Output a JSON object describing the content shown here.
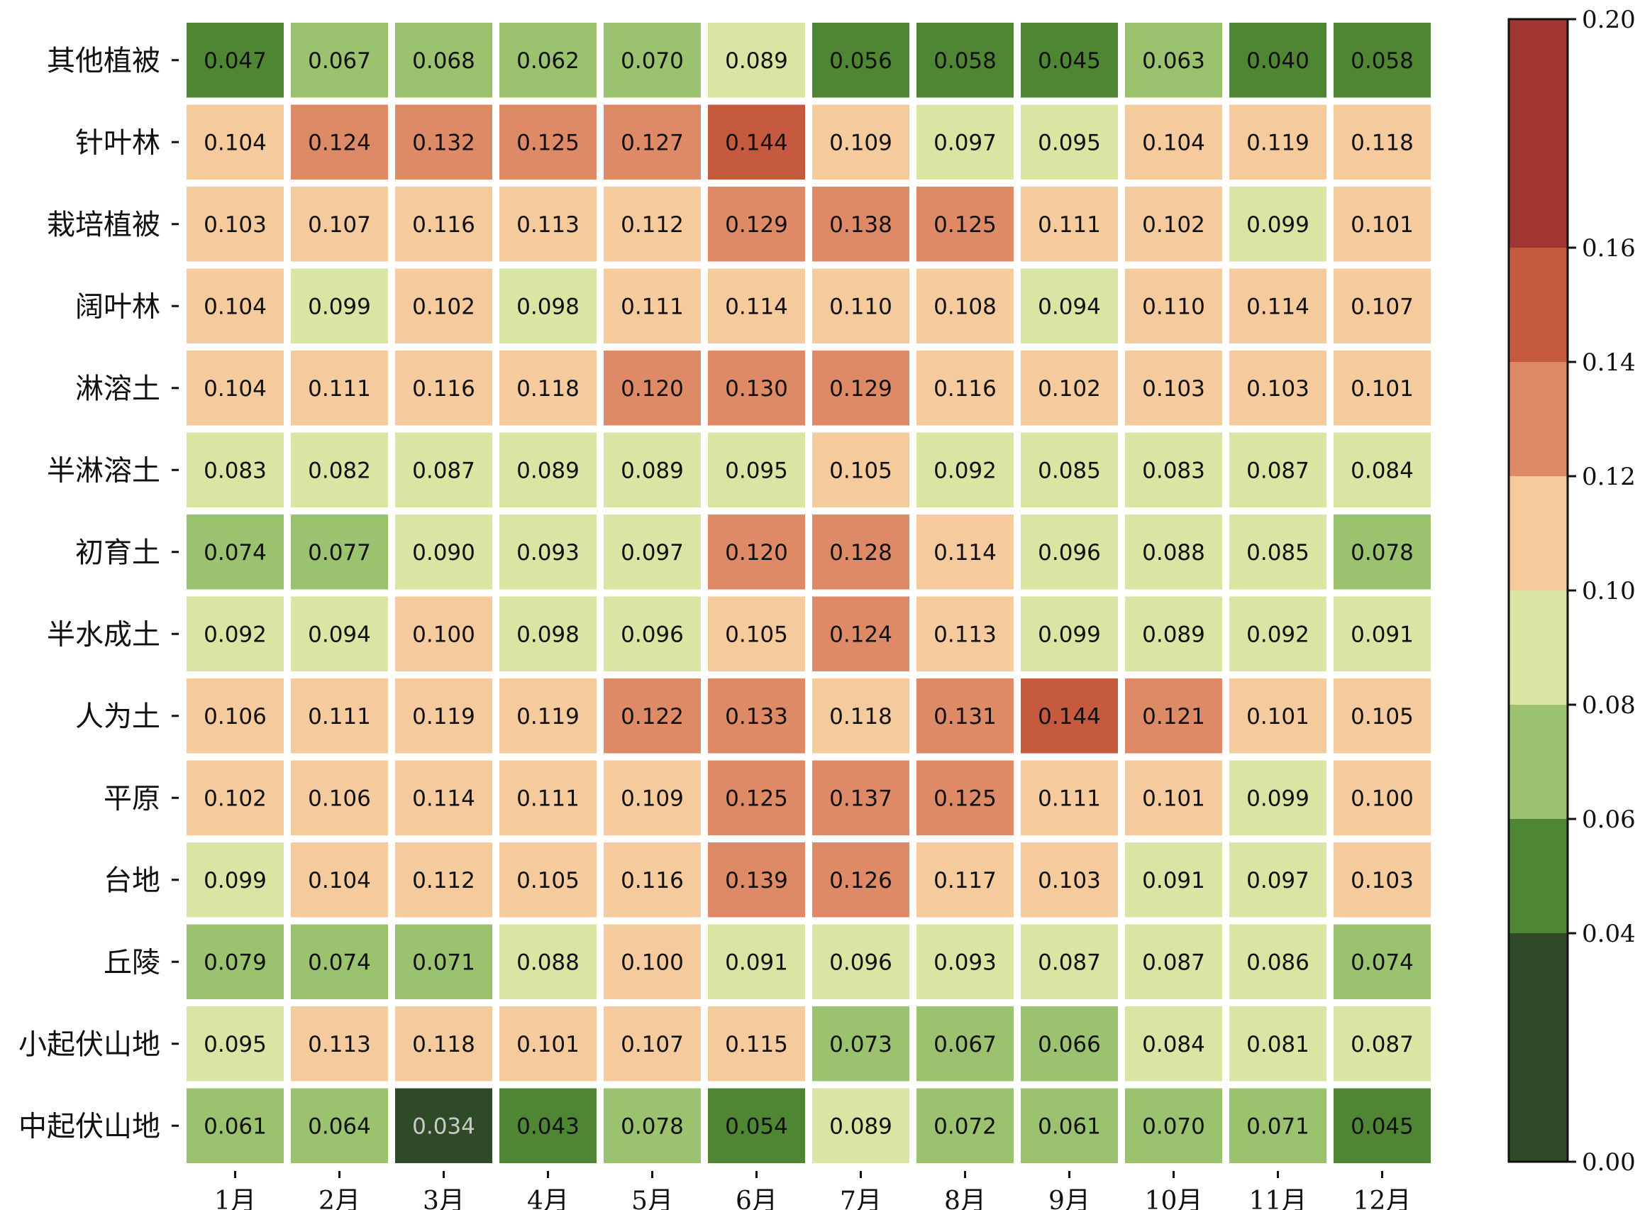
{
  "chart_data": {
    "type": "heatmap",
    "title": "",
    "xlabel": "",
    "ylabel": "",
    "x_categories": [
      "1月",
      "2月",
      "3月",
      "4月",
      "5月",
      "6月",
      "7月",
      "8月",
      "9月",
      "10月",
      "11月",
      "12月"
    ],
    "y_categories": [
      "其他植被",
      "针叶林",
      "栽培植被",
      "阔叶林",
      "淋溶土",
      "半淋溶土",
      "初育土",
      "半水成土",
      "人为土",
      "平原",
      "台地",
      "丘陵",
      "小起伏山地",
      "中起伏山地"
    ],
    "values": [
      [
        "0.047",
        "0.067",
        "0.068",
        "0.062",
        "0.070",
        "0.089",
        "0.056",
        "0.058",
        "0.045",
        "0.063",
        "0.040",
        "0.058"
      ],
      [
        "0.104",
        "0.124",
        "0.132",
        "0.125",
        "0.127",
        "0.144",
        "0.109",
        "0.097",
        "0.095",
        "0.104",
        "0.119",
        "0.118"
      ],
      [
        "0.103",
        "0.107",
        "0.116",
        "0.113",
        "0.112",
        "0.129",
        "0.138",
        "0.125",
        "0.111",
        "0.102",
        "0.099",
        "0.101"
      ],
      [
        "0.104",
        "0.099",
        "0.102",
        "0.098",
        "0.111",
        "0.114",
        "0.110",
        "0.108",
        "0.094",
        "0.110",
        "0.114",
        "0.107"
      ],
      [
        "0.104",
        "0.111",
        "0.116",
        "0.118",
        "0.120",
        "0.130",
        "0.129",
        "0.116",
        "0.102",
        "0.103",
        "0.103",
        "0.101"
      ],
      [
        "0.083",
        "0.082",
        "0.087",
        "0.089",
        "0.089",
        "0.095",
        "0.105",
        "0.092",
        "0.085",
        "0.083",
        "0.087",
        "0.084"
      ],
      [
        "0.074",
        "0.077",
        "0.090",
        "0.093",
        "0.097",
        "0.120",
        "0.128",
        "0.114",
        "0.096",
        "0.088",
        "0.085",
        "0.078"
      ],
      [
        "0.092",
        "0.094",
        "0.100",
        "0.098",
        "0.096",
        "0.105",
        "0.124",
        "0.113",
        "0.099",
        "0.089",
        "0.092",
        "0.091"
      ],
      [
        "0.106",
        "0.111",
        "0.119",
        "0.119",
        "0.122",
        "0.133",
        "0.118",
        "0.131",
        "0.144",
        "0.121",
        "0.101",
        "0.105"
      ],
      [
        "0.102",
        "0.106",
        "0.114",
        "0.111",
        "0.109",
        "0.125",
        "0.137",
        "0.125",
        "0.111",
        "0.101",
        "0.099",
        "0.100"
      ],
      [
        "0.099",
        "0.104",
        "0.112",
        "0.105",
        "0.116",
        "0.139",
        "0.126",
        "0.117",
        "0.103",
        "0.091",
        "0.097",
        "0.103"
      ],
      [
        "0.079",
        "0.074",
        "0.071",
        "0.088",
        "0.100",
        "0.091",
        "0.096",
        "0.093",
        "0.087",
        "0.087",
        "0.086",
        "0.074"
      ],
      [
        "0.095",
        "0.113",
        "0.118",
        "0.101",
        "0.107",
        "0.115",
        "0.073",
        "0.067",
        "0.066",
        "0.084",
        "0.081",
        "0.087"
      ],
      [
        "0.061",
        "0.064",
        "0.034",
        "0.043",
        "0.078",
        "0.054",
        "0.089",
        "0.072",
        "0.061",
        "0.070",
        "0.071",
        "0.045"
      ]
    ],
    "colorbar": {
      "range": [
        0.0,
        0.2
      ],
      "ticks": [
        "0.00",
        "0.04",
        "0.06",
        "0.08",
        "0.10",
        "0.12",
        "0.14",
        "0.16",
        "0.20"
      ],
      "bins": [
        {
          "from": 0.0,
          "to": 0.04,
          "color": "#2f4a26"
        },
        {
          "from": 0.04,
          "to": 0.06,
          "color": "#4f8634"
        },
        {
          "from": 0.06,
          "to": 0.08,
          "color": "#9bc26e"
        },
        {
          "from": 0.08,
          "to": 0.1,
          "color": "#d8e5a3"
        },
        {
          "from": 0.1,
          "to": 0.12,
          "color": "#f5ca9c"
        },
        {
          "from": 0.12,
          "to": 0.14,
          "color": "#df8a66"
        },
        {
          "from": 0.14,
          "to": 0.16,
          "color": "#c65a3f"
        },
        {
          "from": 0.16,
          "to": 0.2,
          "color": "#a23632"
        }
      ]
    },
    "grid": false,
    "legend": "colorbar-right"
  }
}
